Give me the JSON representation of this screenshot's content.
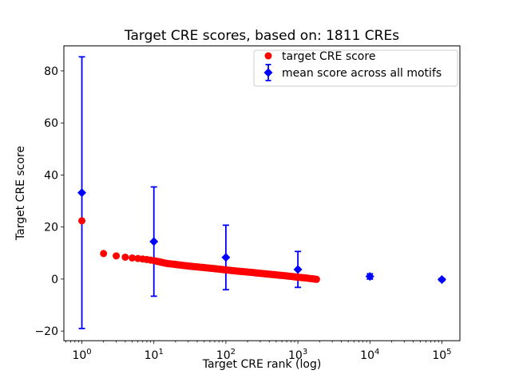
{
  "figure": {
    "title": "Target CRE scores, based on: 1811 CREs",
    "xlabel": "Target CRE rank (log)",
    "ylabel": "Target CRE score",
    "background": "#ffffff",
    "text_color": "#000000",
    "spine_color": "#000000"
  },
  "legend": {
    "position": "upper right",
    "border_color": "#cccccc",
    "items": [
      {
        "label": "target CRE score",
        "marker": "circle",
        "color": "#ff0000"
      },
      {
        "label": "mean score across all motifs",
        "marker": "diamond-errorbar",
        "color": "#0000ff"
      }
    ]
  },
  "chart_data": {
    "type": "scatter",
    "title": "Target CRE scores, based on: 1811 CREs",
    "xlabel": "Target CRE rank (log)",
    "ylabel": "Target CRE score",
    "x_scale": "log",
    "grid": false,
    "legend_position": "upper right",
    "xlim_log10": [
      -0.25,
      5.25
    ],
    "ylim": [
      -23.7,
      89.6
    ],
    "x_ticks": [
      1,
      10,
      100,
      1000,
      10000,
      100000
    ],
    "x_tick_labels": [
      "10⁰",
      "10¹",
      "10²",
      "10³",
      "10⁴",
      "10⁵"
    ],
    "y_ticks": [
      -20,
      0,
      20,
      40,
      60,
      80
    ],
    "series": [
      {
        "name": "target CRE score",
        "type": "scatter",
        "marker": "circle",
        "color": "#ff0000",
        "n_points": 1811,
        "note": "one point per rank 1..1811; values log-interpolated between anchors",
        "anchors": {
          "rank": [
            1,
            2,
            3,
            4,
            5,
            6,
            7,
            8,
            9,
            10,
            15,
            20,
            30,
            50,
            70,
            100,
            150,
            200,
            300,
            500,
            700,
            1000,
            1300,
            1600,
            1811
          ],
          "score": [
            22.4,
            9.8,
            8.9,
            8.4,
            8.1,
            7.9,
            7.7,
            7.5,
            7.3,
            7.1,
            6.0,
            5.6,
            5.0,
            4.4,
            4.0,
            3.5,
            3.0,
            2.7,
            2.2,
            1.6,
            1.2,
            0.7,
            0.4,
            0.1,
            -0.1
          ]
        }
      },
      {
        "name": "mean score across all motifs",
        "type": "errorbar",
        "marker": "diamond",
        "color": "#0000ff",
        "x": [
          1,
          10,
          100,
          1000,
          10000,
          100000
        ],
        "y": [
          33.2,
          14.4,
          8.3,
          3.7,
          1.0,
          -0.2
        ],
        "yerr": [
          52.2,
          21.0,
          12.4,
          6.9,
          1.0,
          0.5
        ]
      }
    ]
  }
}
